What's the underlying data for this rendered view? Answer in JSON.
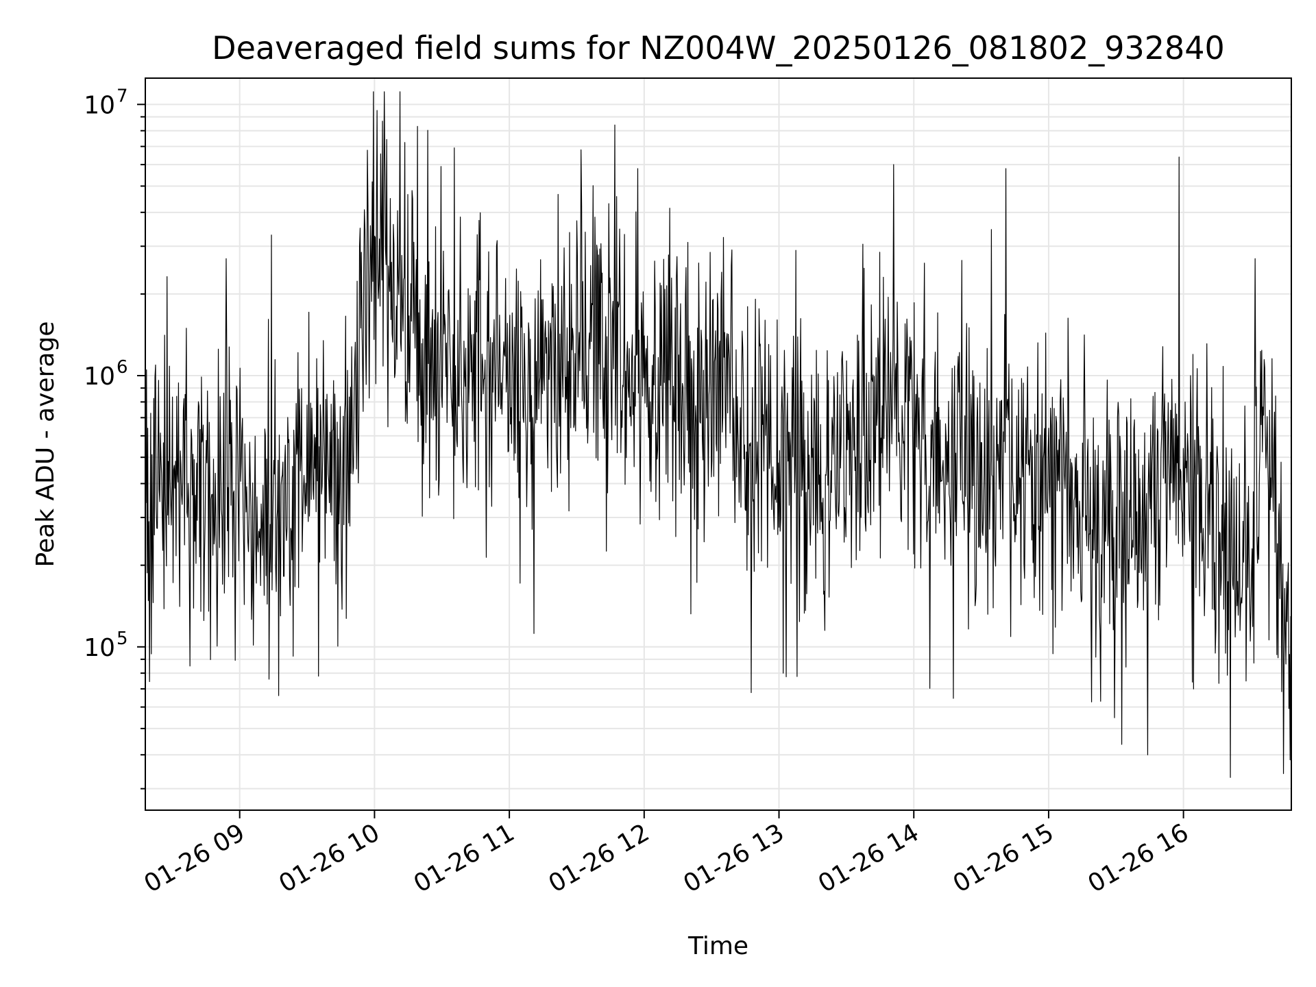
{
  "chart_data": {
    "type": "line",
    "title": "Deaveraged field sums for NZ004W_20250126_081802_932840",
    "xlabel": "Time",
    "ylabel": "Peak ADU - average",
    "yscale": "log",
    "ylim": [
      25000,
      12500000
    ],
    "xlim": [
      "2025-01-26 08:18",
      "2025-01-26 16:48"
    ],
    "grid": true,
    "line_color": "#000000",
    "grid_color": "#e6e6e6",
    "x_ticks": [
      {
        "value": "2025-01-26 09:00",
        "label": "01-26 09"
      },
      {
        "value": "2025-01-26 10:00",
        "label": "01-26 10"
      },
      {
        "value": "2025-01-26 11:00",
        "label": "01-26 11"
      },
      {
        "value": "2025-01-26 12:00",
        "label": "01-26 12"
      },
      {
        "value": "2025-01-26 13:00",
        "label": "01-26 13"
      },
      {
        "value": "2025-01-26 14:00",
        "label": "01-26 14"
      },
      {
        "value": "2025-01-26 15:00",
        "label": "01-26 15"
      },
      {
        "value": "2025-01-26 16:00",
        "label": "01-26 16"
      }
    ],
    "y_ticks": [
      {
        "value": 100000,
        "base": "10",
        "exp": "5"
      },
      {
        "value": 1000000,
        "base": "10",
        "exp": "6"
      },
      {
        "value": 10000000,
        "base": "10",
        "exp": "7"
      }
    ],
    "series": [
      {
        "points": [
          [
            "2025-01-26 08:18",
            350000
          ],
          [
            "2025-01-26 08:30",
            420000
          ],
          [
            "2025-01-26 08:42",
            380000
          ],
          [
            "2025-01-26 08:54",
            450000
          ],
          [
            "2025-01-26 09:06",
            330000
          ],
          [
            "2025-01-26 09:18",
            300000
          ],
          [
            "2025-01-26 09:30",
            420000
          ],
          [
            "2025-01-26 09:42",
            450000
          ],
          [
            "2025-01-26 09:50",
            600000
          ],
          [
            "2025-01-26 09:56",
            2500000
          ],
          [
            "2025-01-26 10:02",
            3500000
          ],
          [
            "2025-01-26 10:06",
            2000000
          ],
          [
            "2025-01-26 10:14",
            1800000
          ],
          [
            "2025-01-26 10:25",
            1400000
          ],
          [
            "2025-01-26 10:40",
            1100000
          ],
          [
            "2025-01-26 10:55",
            900000
          ],
          [
            "2025-01-26 11:10",
            1000000
          ],
          [
            "2025-01-26 11:25",
            1200000
          ],
          [
            "2025-01-26 11:40",
            1300000
          ],
          [
            "2025-01-26 11:55",
            1100000
          ],
          [
            "2025-01-26 12:10",
            900000
          ],
          [
            "2025-01-26 12:25",
            850000
          ],
          [
            "2025-01-26 12:40",
            700000
          ],
          [
            "2025-01-26 12:55",
            500000
          ],
          [
            "2025-01-26 13:10",
            450000
          ],
          [
            "2025-01-26 13:25",
            480000
          ],
          [
            "2025-01-26 13:40",
            700000
          ],
          [
            "2025-01-26 13:52",
            900000
          ],
          [
            "2025-01-26 14:05",
            550000
          ],
          [
            "2025-01-26 14:20",
            500000
          ],
          [
            "2025-01-26 14:35",
            480000
          ],
          [
            "2025-01-26 14:50",
            450000
          ],
          [
            "2025-01-26 15:05",
            380000
          ],
          [
            "2025-01-26 15:20",
            300000
          ],
          [
            "2025-01-26 15:35",
            250000
          ],
          [
            "2025-01-26 15:50",
            450000
          ],
          [
            "2025-01-26 16:02",
            400000
          ],
          [
            "2025-01-26 16:15",
            250000
          ],
          [
            "2025-01-26 16:25",
            200000
          ],
          [
            "2025-01-26 16:32",
            250000
          ],
          [
            "2025-01-26 16:36",
            800000
          ],
          [
            "2025-01-26 16:40",
            500000
          ],
          [
            "2025-01-26 16:44",
            150000
          ],
          [
            "2025-01-26 16:48",
            80000
          ]
        ],
        "peaks": [
          [
            "2025-01-26 08:54",
            2700000
          ],
          [
            "2025-01-26 09:14",
            3300000
          ],
          [
            "2025-01-26 10:01",
            9500000
          ],
          [
            "2025-01-26 10:19",
            8300000
          ],
          [
            "2025-01-26 11:32",
            6800000
          ],
          [
            "2025-01-26 11:47",
            8400000
          ],
          [
            "2025-01-26 13:51",
            6000000
          ],
          [
            "2025-01-26 14:41",
            5800000
          ],
          [
            "2025-01-26 15:58",
            6400000
          ],
          [
            "2025-01-26 16:32",
            2700000
          ]
        ],
        "troughs": [
          [
            "2025-01-26 08:38",
            85000
          ],
          [
            "2025-01-26 09:13",
            76000
          ],
          [
            "2025-01-26 09:35",
            78000
          ],
          [
            "2025-01-26 11:11",
            112000
          ],
          [
            "2025-01-26 13:02",
            80000
          ],
          [
            "2025-01-26 15:23",
            63000
          ],
          [
            "2025-01-26 15:44",
            40000
          ],
          [
            "2025-01-26 16:21",
            33000
          ],
          [
            "2025-01-26 16:48",
            68000
          ]
        ]
      }
    ]
  }
}
